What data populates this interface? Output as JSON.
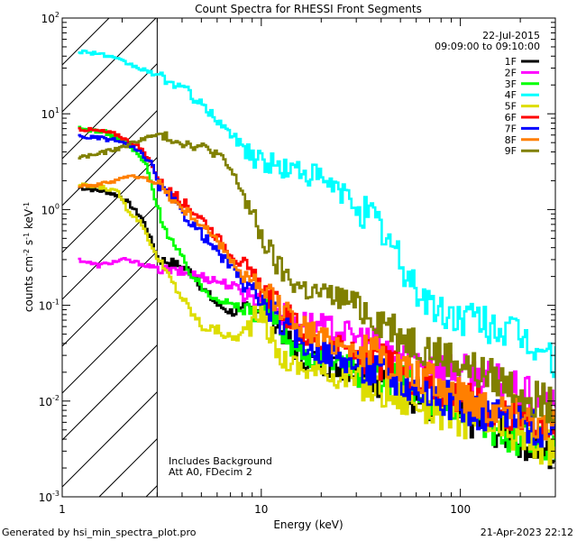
{
  "chart_data": {
    "type": "line",
    "title": "Count Spectra for RHESSI Front Segments",
    "xlabel": "Energy (keV)",
    "ylabel": "counts cm^-2 s^-1 keV^-1",
    "ylabel_main": "counts cm",
    "ylabel_exp1": "-2",
    "ylabel_s": " s",
    "ylabel_exp2": "-1",
    "ylabel_kev": " keV",
    "ylabel_exp3": "-1",
    "xscale": "log",
    "yscale": "log",
    "xlim": [
      1,
      300
    ],
    "ylim": [
      0.001,
      100
    ],
    "x_tick_labels": [
      "1",
      "10",
      "100"
    ],
    "y_tick_labels": [
      {
        "base": "10",
        "exp": "-3"
      },
      {
        "base": "10",
        "exp": "-2"
      },
      {
        "base": "10",
        "exp": "-1"
      },
      {
        "base": "10",
        "exp": "0"
      },
      {
        "base": "10",
        "exp": "1"
      },
      {
        "base": "10",
        "exp": "2"
      }
    ],
    "date": "22-Jul-2015",
    "time_range": "09:09:00 to 09:10:00",
    "threshold_energy": 3,
    "annotations": [
      "Includes Background",
      "Att A0, FDecim 2"
    ],
    "series": [
      {
        "name": "1F",
        "color": "#000000",
        "x": [
          1.2,
          1.6,
          1.9,
          2.1,
          2.5,
          2.8,
          3.0,
          3.5,
          4.5,
          5.0,
          6.0,
          7.0,
          8.0,
          9.0,
          10,
          11,
          12,
          14,
          16,
          20,
          25,
          30,
          40,
          50,
          60,
          70,
          80,
          100,
          120,
          150,
          200,
          250,
          300
        ],
        "y": [
          1.7,
          1.55,
          1.4,
          1.2,
          0.8,
          0.45,
          0.3,
          0.28,
          0.22,
          0.15,
          0.1,
          0.085,
          0.085,
          0.09,
          0.1,
          0.08,
          0.06,
          0.04,
          0.028,
          0.025,
          0.022,
          0.02,
          0.017,
          0.014,
          0.011,
          0.009,
          0.008,
          0.0065,
          0.006,
          0.005,
          0.004,
          0.003,
          0.0025
        ]
      },
      {
        "name": "2F",
        "color": "#ff00ff",
        "x": [
          1.2,
          1.5,
          2.0,
          2.5,
          3.0,
          4.0,
          5.0,
          6.0,
          7.0,
          8.0,
          9.0,
          10,
          12,
          15,
          20,
          25,
          30,
          40,
          50,
          60,
          70,
          80,
          100,
          120,
          150,
          200,
          250,
          300
        ],
        "y": [
          0.3,
          0.26,
          0.3,
          0.27,
          0.24,
          0.22,
          0.2,
          0.18,
          0.16,
          0.14,
          0.12,
          0.1,
          0.085,
          0.07,
          0.06,
          0.055,
          0.045,
          0.035,
          0.03,
          0.027,
          0.025,
          0.023,
          0.02,
          0.018,
          0.016,
          0.012,
          0.01,
          0.008
        ]
      },
      {
        "name": "3F",
        "color": "#00ff00",
        "x": [
          1.2,
          1.6,
          1.9,
          2.1,
          2.3,
          2.6,
          3.0,
          3.3,
          3.8,
          4.5,
          5.0,
          6.0,
          7.0,
          8.0,
          9.0,
          10,
          11,
          12,
          14,
          16,
          20,
          25,
          30,
          40,
          50,
          60,
          70,
          80,
          100,
          120,
          150,
          200,
          250,
          300
        ],
        "y": [
          7,
          6.5,
          5.5,
          4.8,
          4.0,
          3.0,
          1.0,
          0.6,
          0.35,
          0.2,
          0.15,
          0.12,
          0.1,
          0.09,
          0.09,
          0.1,
          0.085,
          0.06,
          0.04,
          0.03,
          0.028,
          0.025,
          0.022,
          0.018,
          0.015,
          0.012,
          0.01,
          0.009,
          0.007,
          0.006,
          0.005,
          0.004,
          0.0035,
          0.003
        ]
      },
      {
        "name": "4F",
        "color": "#00ffff",
        "x": [
          1.2,
          1.5,
          2.0,
          2.5,
          3.0,
          3.5,
          4.0,
          5.0,
          6.0,
          7.0,
          8.0,
          10,
          12,
          14,
          16,
          18,
          20,
          25,
          30,
          35,
          40,
          45,
          50,
          60,
          70,
          80,
          100,
          120,
          150,
          200,
          250,
          300
        ],
        "y": [
          45,
          43,
          35,
          29,
          25,
          21,
          19,
          12,
          8.5,
          6,
          4.6,
          3.2,
          2.8,
          2.6,
          2.5,
          2.3,
          2.0,
          1.5,
          1.1,
          0.85,
          0.6,
          0.4,
          0.25,
          0.15,
          0.1,
          0.08,
          0.075,
          0.07,
          0.06,
          0.045,
          0.035,
          0.025
        ]
      },
      {
        "name": "5F",
        "color": "#dddd00",
        "x": [
          1.2,
          1.6,
          1.9,
          2.1,
          2.5,
          2.8,
          3.0,
          3.5,
          4.5,
          5.0,
          6.0,
          7.0,
          8.0,
          9.0,
          10,
          11,
          12,
          14,
          16,
          20,
          25,
          30,
          40,
          50,
          60,
          70,
          80,
          100,
          120,
          150,
          200,
          250,
          300
        ],
        "y": [
          1.8,
          1.7,
          1.5,
          1.0,
          0.7,
          0.4,
          0.3,
          0.18,
          0.08,
          0.06,
          0.055,
          0.045,
          0.05,
          0.07,
          0.08,
          0.05,
          0.03,
          0.025,
          0.022,
          0.02,
          0.018,
          0.016,
          0.013,
          0.011,
          0.01,
          0.009,
          0.008,
          0.0065,
          0.006,
          0.005,
          0.004,
          0.0035,
          0.003
        ]
      },
      {
        "name": "6F",
        "color": "#ff0000",
        "x": [
          1.2,
          1.6,
          1.9,
          2.1,
          2.4,
          2.8,
          3.0,
          3.5,
          4.0,
          5.0,
          6.0,
          7.0,
          8.0,
          9.0,
          10,
          11,
          12,
          14,
          16,
          20,
          25,
          30,
          40,
          50,
          60,
          70,
          80,
          100,
          120,
          150,
          200,
          250,
          300
        ],
        "y": [
          7,
          6.5,
          6,
          5.2,
          4.5,
          3.0,
          2.0,
          1.5,
          1.2,
          0.8,
          0.5,
          0.35,
          0.25,
          0.18,
          0.15,
          0.12,
          0.1,
          0.07,
          0.05,
          0.04,
          0.035,
          0.03,
          0.025,
          0.02,
          0.018,
          0.015,
          0.013,
          0.011,
          0.009,
          0.008,
          0.007,
          0.006,
          0.005
        ]
      },
      {
        "name": "7F",
        "color": "#0000ff",
        "x": [
          1.2,
          1.6,
          1.9,
          2.1,
          2.4,
          2.8,
          3.0,
          3.5,
          4.0,
          5.0,
          6.0,
          7.0,
          8.0,
          9.0,
          10,
          11,
          12,
          14,
          16,
          20,
          25,
          30,
          40,
          50,
          60,
          70,
          80,
          100,
          120,
          150,
          200,
          250,
          300
        ],
        "y": [
          5.8,
          5.5,
          5.2,
          4.8,
          4.0,
          3.0,
          1.8,
          1.3,
          0.9,
          0.55,
          0.35,
          0.25,
          0.18,
          0.13,
          0.11,
          0.09,
          0.07,
          0.05,
          0.04,
          0.033,
          0.028,
          0.024,
          0.019,
          0.016,
          0.014,
          0.012,
          0.011,
          0.009,
          0.008,
          0.007,
          0.006,
          0.005,
          0.004
        ]
      },
      {
        "name": "8F",
        "color": "#ff7f00",
        "x": [
          1.2,
          1.5,
          1.8,
          2.0,
          2.3,
          2.6,
          3.0,
          3.5,
          4.0,
          5.0,
          6.0,
          7.0,
          8.0,
          9.0,
          10,
          11,
          12,
          14,
          16,
          20,
          25,
          30,
          40,
          50,
          60,
          70,
          80,
          100,
          120,
          150,
          200,
          250,
          300
        ],
        "y": [
          1.8,
          1.8,
          2.0,
          2.2,
          2.2,
          2.1,
          1.9,
          1.3,
          1.0,
          0.7,
          0.45,
          0.3,
          0.2,
          0.16,
          0.14,
          0.12,
          0.1,
          0.08,
          0.06,
          0.045,
          0.04,
          0.035,
          0.028,
          0.022,
          0.018,
          0.016,
          0.014,
          0.012,
          0.01,
          0.009,
          0.008,
          0.006,
          0.005
        ]
      },
      {
        "name": "9F",
        "color": "#808000",
        "x": [
          1.2,
          1.5,
          2.0,
          2.5,
          3.0,
          3.5,
          4.0,
          5.0,
          6.0,
          7.0,
          8.0,
          9.0,
          10,
          11,
          12,
          14,
          16,
          20,
          25,
          30,
          40,
          50,
          60,
          70,
          80,
          100,
          120,
          150,
          200,
          250,
          300
        ],
        "y": [
          3.5,
          3.8,
          4.5,
          5.5,
          6.0,
          5.5,
          5.0,
          4.5,
          3.8,
          2.5,
          1.5,
          0.8,
          0.5,
          0.35,
          0.25,
          0.18,
          0.15,
          0.13,
          0.12,
          0.1,
          0.07,
          0.05,
          0.04,
          0.035,
          0.03,
          0.025,
          0.02,
          0.017,
          0.013,
          0.01,
          0.008
        ]
      }
    ]
  },
  "footer": {
    "generated_by": "Generated by hsi_min_spectra_plot.pro",
    "generated_at": "21-Apr-2023 22:12"
  }
}
